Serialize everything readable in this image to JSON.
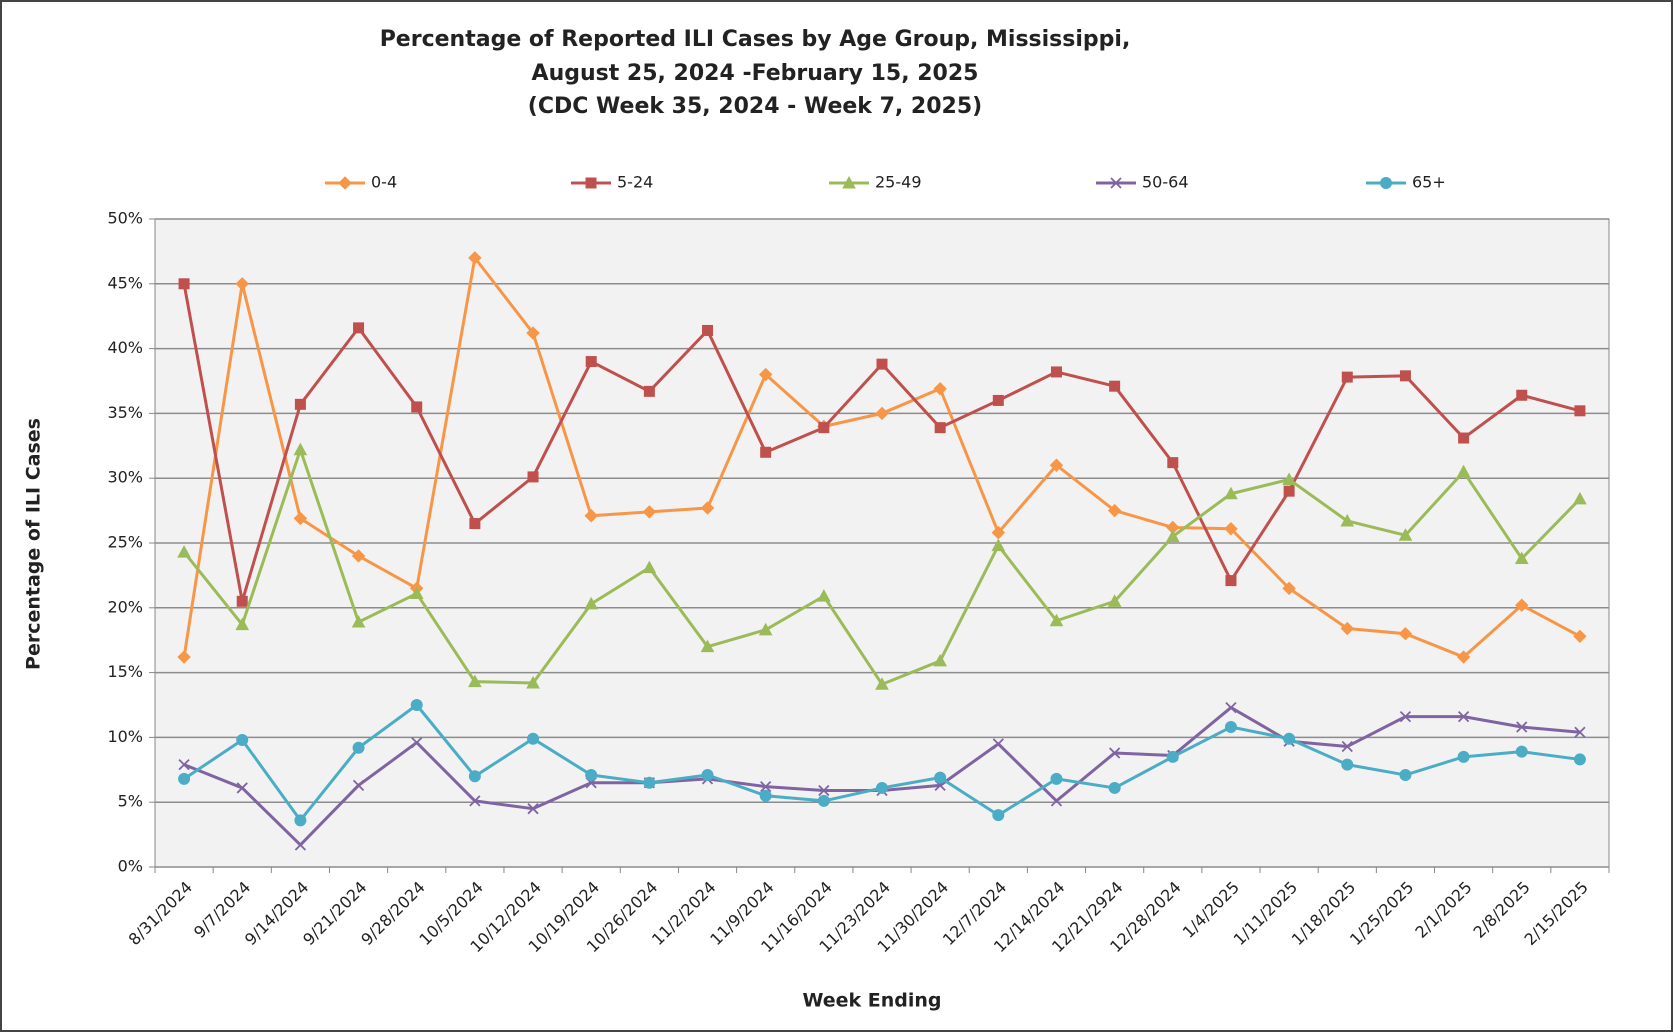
{
  "chart_data": {
    "type": "line",
    "title": [
      "Percentage of Reported ILI Cases by Age Group, Mississippi,",
      "August 25, 2024 -February 15, 2025",
      "(CDC Week 35, 2024 - Week 7, 2025)"
    ],
    "xlabel": "Week Ending",
    "ylabel": "Percentage of ILI Cases",
    "categories": [
      "8/31/2024",
      "9/7/2024",
      "9/14/2024",
      "9/21/2024",
      "9/28/2024",
      "10/5/2024",
      "10/12/2024",
      "10/19/2024",
      "10/26/2024",
      "11/2/2024",
      "11/9/2024",
      "11/16/2024",
      "11/23/2024",
      "11/30/2024",
      "12/7/2024",
      "12/14/2024",
      "12/21/2924",
      "12/28/2024",
      "1/4/2025",
      "1/11/2025",
      "1/18/2025",
      "1/25/2025",
      "2/1/2025",
      "2/8/2025",
      "2/15/2025"
    ],
    "series": [
      {
        "name": "0-4",
        "color": "#f79646",
        "marker": "diamond",
        "values": [
          16.2,
          45,
          26.9,
          24,
          21.5,
          47,
          41.2,
          27.1,
          27.4,
          27.7,
          38,
          34,
          35,
          36.9,
          25.8,
          31,
          27.5,
          26.2,
          26.1,
          21.5,
          18.4,
          18,
          16.2,
          20.2,
          17.8
        ]
      },
      {
        "name": "5-24",
        "color": "#c0504d",
        "marker": "square",
        "values": [
          45,
          20.5,
          35.7,
          41.6,
          35.5,
          26.5,
          30.1,
          39,
          36.7,
          41.4,
          32,
          33.9,
          38.8,
          33.9,
          36,
          38.2,
          37.1,
          31.2,
          22.1,
          29,
          37.8,
          37.9,
          33.1,
          36.4,
          35.2
        ]
      },
      {
        "name": "25-49",
        "color": "#9bbb59",
        "marker": "triangle",
        "values": [
          24.3,
          18.7,
          32.2,
          18.9,
          21.1,
          14.3,
          14.2,
          20.3,
          23.1,
          17,
          18.3,
          20.9,
          14.1,
          15.9,
          24.8,
          19,
          20.5,
          25.5,
          28.8,
          29.9,
          26.7,
          25.6,
          30.5,
          23.8,
          28.4
        ]
      },
      {
        "name": "50-64",
        "color": "#8064a2",
        "marker": "x",
        "values": [
          7.9,
          6.1,
          1.7,
          6.3,
          9.6,
          5.1,
          4.5,
          6.5,
          6.5,
          6.8,
          6.2,
          5.9,
          5.9,
          6.3,
          9.5,
          5.1,
          8.8,
          8.6,
          12.3,
          9.7,
          9.3,
          11.6,
          11.6,
          10.8,
          10.4
        ]
      },
      {
        "name": "65+",
        "color": "#4bacc6",
        "marker": "circle",
        "values": [
          6.8,
          9.8,
          3.6,
          9.2,
          12.5,
          7,
          9.9,
          7.1,
          6.5,
          7.1,
          5.5,
          5.1,
          6.1,
          6.9,
          4,
          6.8,
          6.1,
          8.5,
          10.8,
          9.9,
          7.9,
          7.1,
          8.5,
          8.9,
          8.3
        ]
      }
    ],
    "ylim": [
      0,
      50
    ],
    "yticks": [
      {
        "value": 0,
        "label": "0%"
      },
      {
        "value": 5,
        "label": "5%"
      },
      {
        "value": 10,
        "label": "10%"
      },
      {
        "value": 15,
        "label": "15%"
      },
      {
        "value": 20,
        "label": "20%"
      },
      {
        "value": 25,
        "label": "25%"
      },
      {
        "value": 30,
        "label": "30%"
      },
      {
        "value": 35,
        "label": "35%"
      },
      {
        "value": 40,
        "label": "40%"
      },
      {
        "value": 45,
        "label": "45%"
      },
      {
        "value": 50,
        "label": "50%"
      }
    ],
    "grid": true,
    "legend": "top"
  }
}
